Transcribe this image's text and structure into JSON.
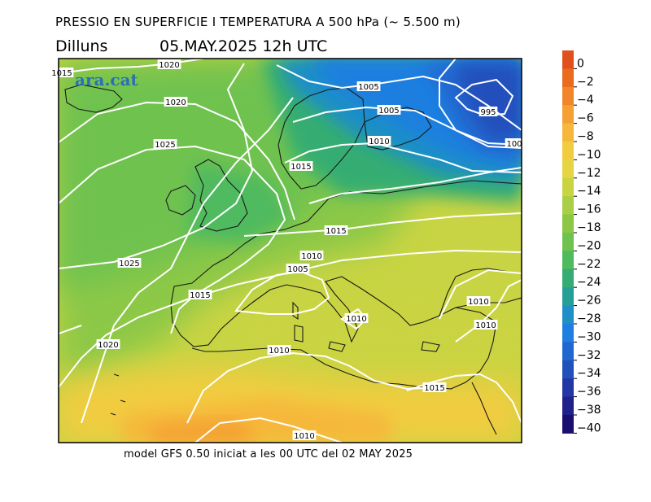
{
  "header": {
    "title": "PRESSIO EN SUPERFICIE I TEMPERATURA A 500 hPa (~ 5.500 m)",
    "day": "Dilluns",
    "datetime": "05.MAY.2025  12h  UTC"
  },
  "footer": "model GFS 0.50 iniciat a les 00 UTC del 02 MAY 2025",
  "logo": "ara.cat",
  "colorbar": {
    "labels": [
      "0",
      "−2",
      "−4",
      "−6",
      "−8",
      "−10",
      "−12",
      "−14",
      "−16",
      "−18",
      "−20",
      "−22",
      "−24",
      "−26",
      "−28",
      "−30",
      "−32",
      "−34",
      "−36",
      "−38",
      "−40"
    ],
    "colors": [
      "#e0511d",
      "#ea6a1e",
      "#f1852a",
      "#f4a033",
      "#f6b83b",
      "#f2cc3f",
      "#e6d443",
      "#cad443",
      "#a8cf46",
      "#8cc846",
      "#6fc24f",
      "#4fba5e",
      "#35ad72",
      "#26a096",
      "#1f8fc6",
      "#1f7fe0",
      "#2068d0",
      "#2150bb",
      "#2237a3",
      "#21218b",
      "#1a0e6e"
    ]
  },
  "isobar_labels": [
    {
      "text": "1015"
    },
    {
      "text": "1020"
    },
    {
      "text": "1020"
    },
    {
      "text": "1025"
    },
    {
      "text": "1005"
    },
    {
      "text": "1005"
    },
    {
      "text": "995"
    },
    {
      "text": "1010"
    },
    {
      "text": "100"
    },
    {
      "text": "1015"
    },
    {
      "text": "1015"
    },
    {
      "text": "1010"
    },
    {
      "text": "1005"
    },
    {
      "text": "1025"
    },
    {
      "text": "1015"
    },
    {
      "text": "1010"
    },
    {
      "text": "1010"
    },
    {
      "text": "1010"
    },
    {
      "text": "1020"
    },
    {
      "text": "1010"
    },
    {
      "text": "1015"
    },
    {
      "text": "1010"
    }
  ]
}
